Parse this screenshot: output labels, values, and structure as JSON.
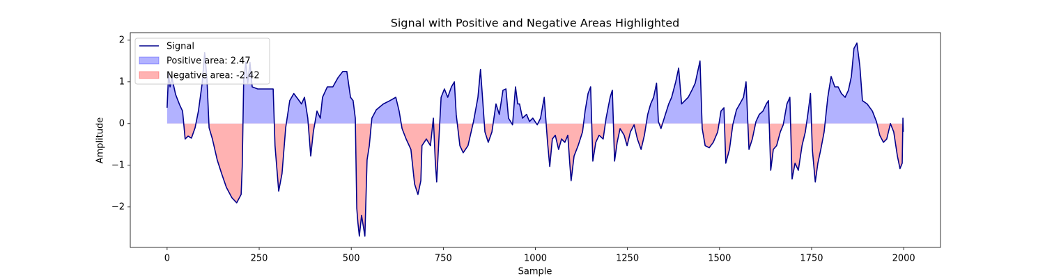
{
  "chart_data": {
    "type": "line",
    "title": "Signal with Positive and Negative Areas Highlighted",
    "xlabel": "Sample",
    "ylabel": "Amplitude",
    "xlim": [
      -100,
      2100
    ],
    "ylim": [
      -2.97,
      2.18
    ],
    "xticks": [
      0,
      250,
      500,
      750,
      1000,
      1250,
      1500,
      1750,
      2000
    ],
    "yticks": [
      {
        "value": -2,
        "label": "−2"
      },
      {
        "value": -1,
        "label": "−1"
      },
      0,
      1,
      2
    ],
    "legend": "upper left",
    "x": [
      0,
      4,
      8,
      13,
      23,
      34,
      42,
      49,
      57,
      66,
      76,
      85,
      95,
      102,
      108,
      114,
      123,
      136,
      148,
      161,
      176,
      189,
      201,
      204,
      208,
      214,
      219,
      225,
      231,
      246,
      265,
      288,
      293,
      303,
      312,
      322,
      333,
      344,
      356,
      365,
      373,
      382,
      390,
      397,
      407,
      416,
      422,
      435,
      450,
      464,
      477,
      488,
      498,
      505,
      511,
      515,
      518,
      522,
      528,
      534,
      537,
      543,
      549,
      556,
      568,
      587,
      605,
      621,
      630,
      638,
      649,
      662,
      672,
      681,
      689,
      692,
      704,
      715,
      723,
      728,
      732,
      738,
      744,
      753,
      762,
      772,
      780,
      785,
      795,
      804,
      817,
      832,
      844,
      851,
      855,
      863,
      872,
      882,
      893,
      902,
      912,
      920,
      927,
      938,
      946,
      952,
      957,
      965,
      976,
      984,
      993,
      1005,
      1014,
      1024,
      1033,
      1039,
      1046,
      1054,
      1063,
      1071,
      1080,
      1088,
      1094,
      1097,
      1105,
      1116,
      1128,
      1135,
      1143,
      1150,
      1156,
      1164,
      1173,
      1184,
      1192,
      1203,
      1209,
      1215,
      1222,
      1230,
      1241,
      1249,
      1258,
      1268,
      1277,
      1287,
      1296,
      1305,
      1313,
      1321,
      1329,
      1334,
      1341,
      1353,
      1362,
      1370,
      1381,
      1389,
      1397,
      1406,
      1415,
      1425,
      1434,
      1442,
      1447,
      1453,
      1461,
      1472,
      1483,
      1495,
      1504,
      1512,
      1517,
      1527,
      1536,
      1546,
      1555,
      1565,
      1572,
      1580,
      1589,
      1599,
      1608,
      1618,
      1627,
      1633,
      1639,
      1646,
      1655,
      1665,
      1673,
      1683,
      1691,
      1697,
      1705,
      1714,
      1724,
      1733,
      1741,
      1747,
      1752,
      1760,
      1767,
      1775,
      1784,
      1794,
      1803,
      1813,
      1822,
      1831,
      1841,
      1850,
      1858,
      1865,
      1873,
      1881,
      1888,
      1901,
      1915,
      1926,
      1935,
      1945,
      1954,
      1964,
      1973,
      1983,
      1990,
      1996,
      1998,
      1999
    ],
    "series": [
      {
        "name": "Signal",
        "color": "#00008b",
        "values": [
          0.38,
          1.2,
          0.88,
          1.1,
          0.7,
          0.45,
          0.3,
          -0.37,
          -0.3,
          -0.35,
          -0.1,
          0.3,
          0.95,
          1.7,
          1.1,
          -0.1,
          -0.37,
          -0.87,
          -1.2,
          -1.53,
          -1.78,
          -1.9,
          -1.7,
          -1.03,
          1.05,
          1.47,
          0.97,
          1.47,
          0.88,
          0.83,
          0.83,
          0.83,
          -0.53,
          -1.62,
          -1.2,
          -0.1,
          0.55,
          0.72,
          0.58,
          0.47,
          0.63,
          0.13,
          -0.78,
          -0.2,
          0.3,
          0.13,
          0.63,
          0.88,
          0.88,
          1.1,
          1.25,
          1.25,
          0.63,
          0.55,
          0.13,
          -2.03,
          -2.37,
          -2.7,
          -2.2,
          -2.53,
          -2.7,
          -0.87,
          -0.53,
          0.13,
          0.33,
          0.47,
          0.55,
          0.63,
          0.3,
          -0.12,
          -0.37,
          -0.62,
          -1.45,
          -1.7,
          -1.37,
          -0.53,
          -0.37,
          -0.53,
          0.13,
          -0.87,
          -1.4,
          -0.37,
          0.63,
          0.83,
          0.63,
          0.88,
          1.0,
          0.22,
          -0.53,
          -0.7,
          -0.53,
          0.05,
          0.63,
          1.3,
          0.8,
          -0.2,
          -0.45,
          -0.2,
          0.47,
          0.22,
          0.8,
          0.83,
          0.13,
          -0.03,
          0.88,
          0.47,
          0.47,
          0.13,
          0.22,
          0.05,
          0.13,
          -0.03,
          0.13,
          0.63,
          -0.45,
          -1.03,
          -0.37,
          -0.28,
          -0.62,
          -0.37,
          -0.45,
          -0.28,
          -1.03,
          -1.37,
          -0.78,
          -0.53,
          -0.2,
          0.3,
          0.72,
          0.88,
          -0.9,
          -0.45,
          -0.28,
          -0.37,
          0.13,
          0.63,
          0.8,
          -0.9,
          -0.45,
          -0.12,
          -0.28,
          -0.53,
          -0.2,
          -0.03,
          -0.37,
          -0.62,
          -0.28,
          0.22,
          0.47,
          0.63,
          0.97,
          0.05,
          -0.12,
          0.22,
          0.47,
          0.63,
          1.0,
          1.33,
          0.47,
          0.55,
          0.63,
          0.8,
          0.97,
          1.3,
          1.5,
          -0.12,
          -0.53,
          -0.58,
          -0.45,
          -0.2,
          0.3,
          0.38,
          -0.95,
          -0.62,
          -0.03,
          0.33,
          0.47,
          0.63,
          1.0,
          -0.62,
          -0.37,
          0.05,
          0.22,
          0.3,
          0.47,
          0.55,
          -1.12,
          -0.62,
          -0.53,
          -0.2,
          -0.03,
          0.47,
          0.63,
          -1.33,
          -0.95,
          -1.12,
          -0.53,
          -0.2,
          0.3,
          0.72,
          -0.62,
          -1.4,
          -0.95,
          -0.62,
          -0.2,
          0.63,
          1.13,
          0.88,
          0.88,
          0.72,
          0.63,
          0.8,
          1.13,
          1.8,
          1.93,
          1.38,
          0.55,
          0.47,
          0.3,
          0.05,
          -0.28,
          -0.45,
          -0.37,
          0.0,
          -0.2,
          -0.78,
          -1.08,
          -0.95,
          0.13,
          -0.2
        ]
      }
    ],
    "fills": [
      {
        "name": "Positive area: 2.47",
        "color": "#0000ff",
        "alpha": 0.3,
        "side": "positive"
      },
      {
        "name": "Negative area: -2.42",
        "color": "#ff0000",
        "alpha": 0.3,
        "side": "negative"
      }
    ]
  }
}
